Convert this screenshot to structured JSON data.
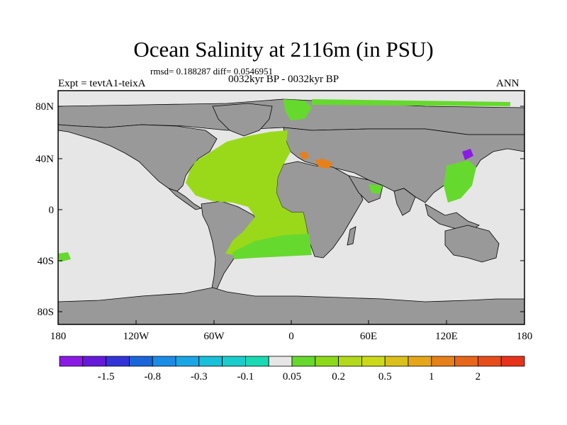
{
  "title": "Ocean Salinity at 2116m (in PSU)",
  "stats_line": "rmsd= 0.188287 diff= 0.0546951",
  "experiment": "Expt = tevtA1-teixA",
  "period": "0032kyr BP - 0032kyr BP",
  "season": "ANN",
  "map": {
    "lat_labels": [
      "80N",
      "40N",
      "0",
      "40S",
      "80S"
    ],
    "lon_labels": [
      "180",
      "120W",
      "60W",
      "0",
      "60E",
      "120E",
      "180"
    ],
    "colors": {
      "land": "#999999",
      "ocean_near_zero": "#e6e6e6",
      "atlantic": "#99d91a",
      "south_atlantic": "#66d92e",
      "arctic_patch": "#66d92e",
      "mediterranean": "#e6801a",
      "japan_sea": "#8c1ae6",
      "coast": "#000000"
    }
  },
  "colorbar": {
    "swatches": [
      "#8c1ae6",
      "#661ad9",
      "#3333d9",
      "#1a66d9",
      "#1a8ce6",
      "#1aa6e6",
      "#1abfd9",
      "#1acccc",
      "#1ad9b3",
      "#e6e6e6",
      "#66d92e",
      "#8cd91a",
      "#b3d91a",
      "#ccd91a",
      "#d9c01a",
      "#e6a61a",
      "#e6801a",
      "#e6661a",
      "#e64d1a",
      "#e6331a"
    ],
    "labels": [
      "-1.5",
      "-0.8",
      "-0.3",
      "-0.1",
      "0.05",
      "0.2",
      "0.5",
      "1",
      "2"
    ]
  }
}
